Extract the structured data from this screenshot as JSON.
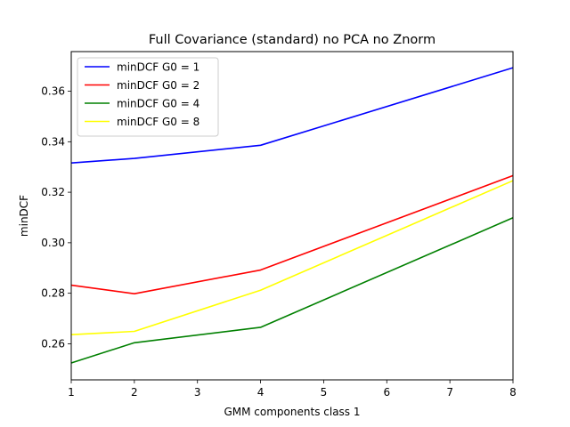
{
  "chart_data": {
    "type": "line",
    "title": "Full Covariance (standard) no PCA no Znorm",
    "xlabel": "GMM components class 1",
    "ylabel": "minDCF",
    "xlim": [
      1,
      8
    ],
    "ylim": [
      0.2457,
      0.3757
    ],
    "x_ticks": [
      1,
      2,
      3,
      4,
      5,
      6,
      7,
      8
    ],
    "x_tick_labels": [
      "1",
      "2",
      "3",
      "4",
      "5",
      "6",
      "7",
      "8"
    ],
    "y_ticks": [
      0.26,
      0.28,
      0.3,
      0.32,
      0.34,
      0.36
    ],
    "y_tick_labels": [
      "0.26",
      "0.28",
      "0.30",
      "0.32",
      "0.34",
      "0.36"
    ],
    "grid": false,
    "legend_position": "top-left",
    "x": [
      1,
      2,
      4,
      8
    ],
    "series": [
      {
        "name": "minDCF G0 = 1",
        "color": "#0000ff",
        "values": [
          0.3316,
          0.3334,
          0.3386,
          0.3693
        ]
      },
      {
        "name": "minDCF G0 = 2",
        "color": "#ff0000",
        "values": [
          0.2832,
          0.2798,
          0.2892,
          0.3266
        ]
      },
      {
        "name": "minDCF G0 = 4",
        "color": "#008000",
        "values": [
          0.2524,
          0.2604,
          0.2665,
          0.3099
        ]
      },
      {
        "name": "minDCF G0 = 8",
        "color": "#ffff00",
        "values": [
          0.2636,
          0.2649,
          0.2812,
          0.3246
        ]
      }
    ]
  }
}
